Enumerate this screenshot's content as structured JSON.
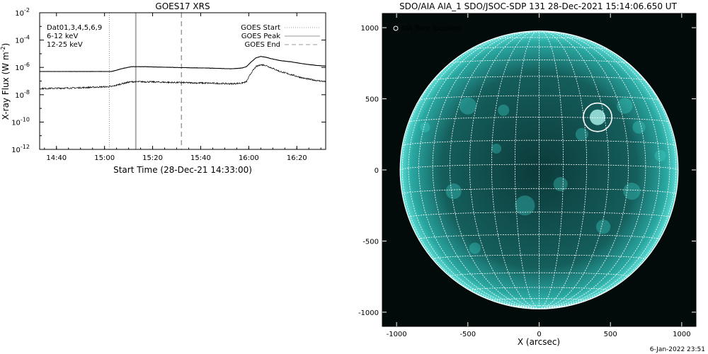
{
  "chart_data": [
    {
      "type": "line",
      "title": "GOES17 XRS",
      "xlabel": "Start Time (28-Dec-21 14:33:00)",
      "ylabel": "X-ray Flux (W m",
      "ylabel_sup": "-2",
      "ylabel_close": ")",
      "y_scale": "log",
      "ylim": [
        1e-12,
        0.01
      ],
      "xlim_minutes": [
        0,
        119
      ],
      "x_tick_labels": [
        "14:40",
        "15:00",
        "15:20",
        "15:40",
        "16:00",
        "16:20"
      ],
      "x_tick_minutes": [
        7,
        27,
        47,
        67,
        87,
        107
      ],
      "y_tick_base": "10",
      "y_tick_exponents": [
        "-2",
        "-4",
        "-6",
        "-8",
        "-10",
        "-12"
      ],
      "y_tick_values": [
        -2,
        -4,
        -6,
        -8,
        -10,
        -12
      ],
      "data_label_prefix": "Dat01,3,4,5,6,9",
      "legend_left": [
        {
          "label": "6-12 keV",
          "color": "#cc00cc"
        },
        {
          "label": "12-25 keV",
          "color": "#00cc00"
        }
      ],
      "legend_right": [
        {
          "label": "GOES Start",
          "style": "dotted"
        },
        {
          "label": "GOES Peak",
          "style": "solid"
        },
        {
          "label": "GOES End",
          "style": "dashed"
        }
      ],
      "event_lines_minutes": {
        "start": 29,
        "peak": 40,
        "end": 59
      },
      "series": [
        {
          "channel": "long",
          "x_minutes": [
            0,
            20,
            30,
            34,
            38,
            44,
            55,
            70,
            80,
            84,
            86,
            88,
            90,
            92,
            94,
            96,
            100,
            105,
            110,
            115,
            119
          ],
          "log_flux": [
            -6.3,
            -6.3,
            -6.3,
            -6.1,
            -5.95,
            -5.95,
            -6.0,
            -6.05,
            -6.1,
            -6.05,
            -5.95,
            -5.6,
            -5.3,
            -5.2,
            -5.25,
            -5.35,
            -5.5,
            -5.6,
            -5.75,
            -5.85,
            -5.9
          ]
        },
        {
          "channel": "short",
          "x_minutes": [
            0,
            15,
            30,
            34,
            38,
            44,
            55,
            70,
            80,
            84,
            86,
            88,
            90,
            92,
            94,
            96,
            100,
            105,
            110,
            115,
            119
          ],
          "log_flux": [
            -7.55,
            -7.5,
            -7.4,
            -7.2,
            -7.05,
            -7.05,
            -7.1,
            -7.15,
            -7.2,
            -7.15,
            -7.05,
            -6.4,
            -5.95,
            -5.8,
            -5.85,
            -6.0,
            -6.3,
            -6.55,
            -6.8,
            -6.95,
            -7.05
          ]
        }
      ]
    },
    {
      "type": "scatter",
      "title": "SDO/AIA AIA_1 SDO/JSOC-SDP 131 28-Dec-2021 15:14:06.650 UT",
      "xlabel": "X (arcsec)",
      "ylabel": "",
      "xlim": [
        -1100,
        1100
      ],
      "ylim": [
        -1100,
        1100
      ],
      "x_ticks": [
        "-1000",
        "-500",
        "0",
        "500",
        "1000"
      ],
      "y_ticks": [
        "1000",
        "500",
        "0",
        "-500",
        "-1000"
      ],
      "tick_values": [
        -1000,
        -500,
        0,
        500,
        1000
      ],
      "legend": "AIA flare location",
      "flare_location": {
        "x": 410,
        "y": 370
      },
      "solar_radius_arcsec": 975,
      "disk_color": "#1e9a96",
      "background_color": "#020a0a"
    }
  ],
  "footer": {
    "timestamp": "6-Jan-2022 23:51"
  }
}
